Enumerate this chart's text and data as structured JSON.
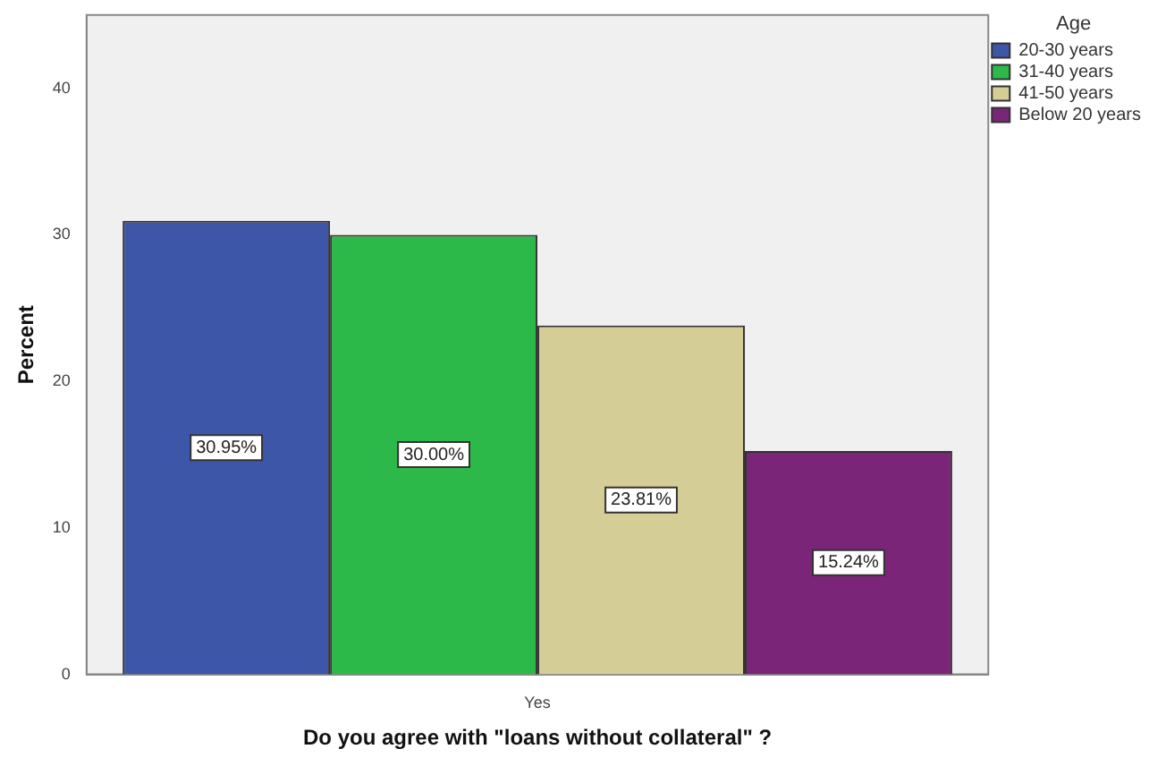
{
  "chart_data": {
    "type": "bar",
    "xlabel": "Do you agree with \"loans without collateral\" ?",
    "ylabel": "Percent",
    "legend_title": "Age",
    "categories": [
      "Yes"
    ],
    "series": [
      {
        "name": "20-30 years",
        "color": "#3e56a8",
        "values": [
          30.95
        ],
        "value_labels": [
          "30.95%"
        ]
      },
      {
        "name": "31-40 years",
        "color": "#2db84a",
        "values": [
          30.0
        ],
        "value_labels": [
          "30.00%"
        ]
      },
      {
        "name": "41-50 years",
        "color": "#d4ce96",
        "values": [
          23.81
        ],
        "value_labels": [
          "23.81%"
        ]
      },
      {
        "name": "Below 20 years",
        "color": "#7b2579",
        "values": [
          15.24
        ],
        "value_labels": [
          "15.24%"
        ]
      }
    ],
    "ylim": [
      0,
      45
    ],
    "yticks": [
      0,
      10,
      20,
      30,
      40
    ],
    "grid": false,
    "legend": "top right"
  }
}
